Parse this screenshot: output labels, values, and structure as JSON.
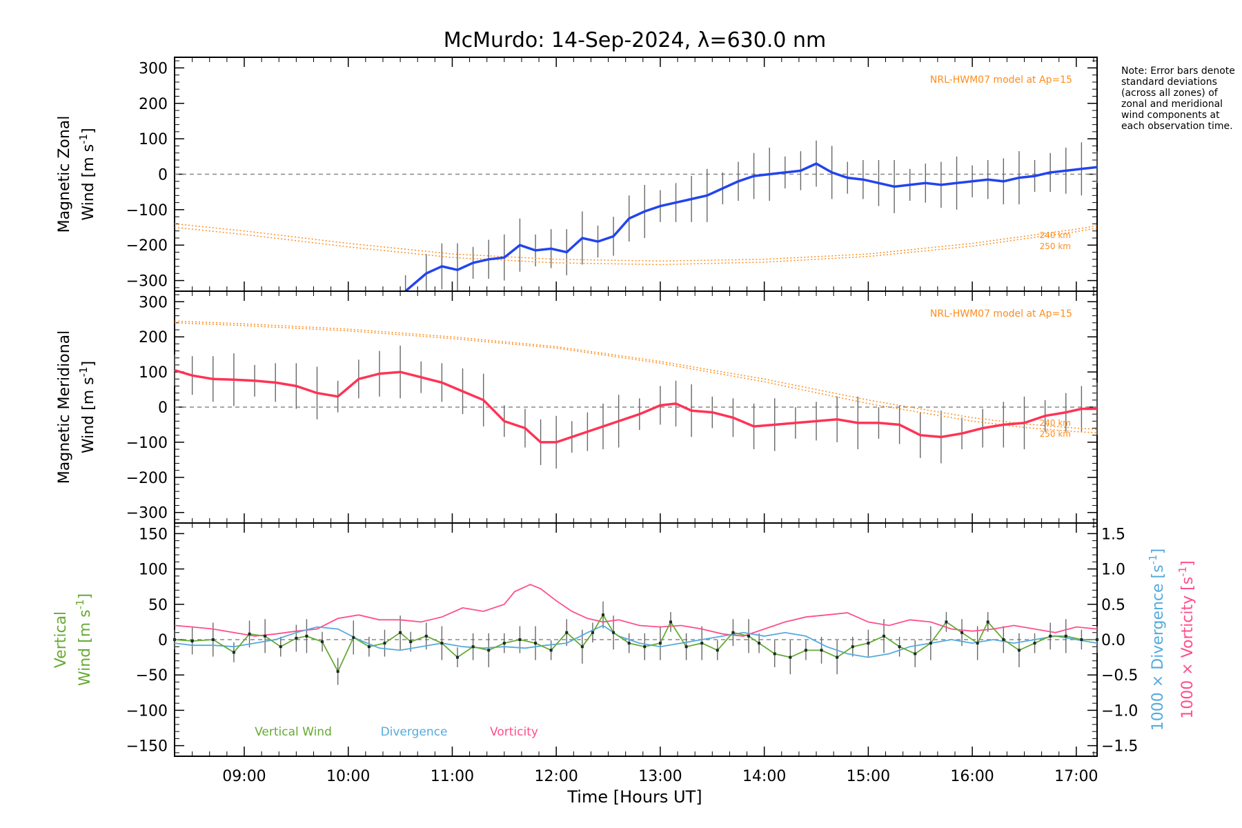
{
  "chart_data": {
    "type": "line",
    "title": "McMurdo: 14-Sep-2024, λ=630.0 nm",
    "xlabel": "Time [Hours UT]",
    "x_ticks": [
      "09:00",
      "10:00",
      "11:00",
      "12:00",
      "13:00",
      "14:00",
      "15:00",
      "16:00",
      "17:00"
    ],
    "xlim": [
      8.33,
      17.2
    ],
    "note": "Note: Error bars denote standard deviations (across all zones) of zonal and meridional wind components at each observation time.",
    "colors": {
      "zonal": "#2244ee",
      "meridional": "#ff3355",
      "model": "#ff8c1a",
      "vertical": "#66aa33",
      "divergence": "#55aadd",
      "vorticity": "#ff4d8c",
      "errbar": "#666666"
    },
    "panels": [
      {
        "name": "zonal",
        "ylabel_line1": "Magnetic Zonal",
        "ylabel_line2": "Wind [m s",
        "ylabel_sup": "-1",
        "ylabel_close": "]",
        "ylim": [
          -330,
          330
        ],
        "y_ticks": [
          "300",
          "200",
          "100",
          "0",
          "−100",
          "−200",
          "−300"
        ],
        "model_label": "NRL-HWM07 model at Ap=15",
        "model_altitudes": [
          "240 km",
          "250 km"
        ],
        "series": [
          {
            "name": "zonal-wind",
            "x": [
              10.55,
              10.75,
              10.9,
              11.05,
              11.2,
              11.35,
              11.5,
              11.65,
              11.8,
              11.95,
              12.1,
              12.25,
              12.4,
              12.55,
              12.7,
              12.85,
              13.0,
              13.15,
              13.3,
              13.45,
              13.6,
              13.75,
              13.9,
              14.05,
              14.2,
              14.35,
              14.5,
              14.65,
              14.8,
              14.95,
              15.1,
              15.25,
              15.4,
              15.55,
              15.7,
              15.85,
              16.0,
              16.15,
              16.3,
              16.45,
              16.6,
              16.75,
              16.9,
              17.05,
              17.2
            ],
            "y": [
              -330,
              -280,
              -260,
              -270,
              -250,
              -240,
              -235,
              -200,
              -215,
              -210,
              -220,
              -180,
              -190,
              -175,
              -125,
              -105,
              -90,
              -80,
              -70,
              -60,
              -40,
              -20,
              -5,
              0,
              5,
              10,
              30,
              5,
              -10,
              -15,
              -25,
              -35,
              -30,
              -25,
              -30,
              -25,
              -20,
              -15,
              -20,
              -10,
              -5,
              5,
              10,
              15,
              20
            ]
          },
          {
            "name": "model-240km",
            "x": [
              8.33,
              9.0,
              10.0,
              11.0,
              12.0,
              13.0,
              14.0,
              15.0,
              16.0,
              16.5,
              17.0,
              17.2
            ],
            "y": [
              -140,
              -160,
              -195,
              -225,
              -240,
              -245,
              -240,
              -225,
              -195,
              -175,
              -155,
              -145
            ]
          },
          {
            "name": "model-250km",
            "x": [
              8.33,
              9.0,
              10.0,
              11.0,
              12.0,
              13.0,
              14.0,
              15.0,
              16.0,
              16.5,
              17.0,
              17.2
            ],
            "y": [
              -150,
              -170,
              -205,
              -235,
              -250,
              -255,
              -248,
              -232,
              -203,
              -182,
              -162,
              -152
            ]
          }
        ]
      },
      {
        "name": "meridional",
        "ylabel_line1": "Magnetic Meridional",
        "ylabel_line2": "Wind [m s",
        "ylabel_sup": "-1",
        "ylabel_close": "]",
        "ylim": [
          -330,
          330
        ],
        "y_ticks": [
          "300",
          "200",
          "100",
          "0",
          "−100",
          "−200",
          "−300"
        ],
        "model_label": "NRL-HWM07 model at Ap=15",
        "model_altitudes": [
          "240 km",
          "250 km"
        ],
        "series": [
          {
            "name": "meridional-wind",
            "x": [
              8.33,
              8.5,
              8.7,
              8.9,
              9.1,
              9.3,
              9.5,
              9.7,
              9.9,
              10.1,
              10.3,
              10.5,
              10.7,
              10.9,
              11.1,
              11.3,
              11.5,
              11.7,
              11.85,
              12.0,
              12.15,
              12.3,
              12.45,
              12.6,
              12.8,
              13.0,
              13.15,
              13.3,
              13.5,
              13.7,
              13.9,
              14.1,
              14.3,
              14.5,
              14.7,
              14.9,
              15.1,
              15.3,
              15.5,
              15.7,
              15.9,
              16.1,
              16.3,
              16.5,
              16.7,
              16.9,
              17.05,
              17.2
            ],
            "y": [
              105,
              90,
              80,
              78,
              75,
              70,
              60,
              40,
              30,
              80,
              95,
              100,
              85,
              70,
              45,
              20,
              -40,
              -60,
              -100,
              -100,
              -85,
              -70,
              -55,
              -40,
              -20,
              5,
              10,
              -10,
              -15,
              -30,
              -55,
              -50,
              -45,
              -40,
              -35,
              -45,
              -45,
              -50,
              -80,
              -85,
              -75,
              -60,
              -50,
              -45,
              -25,
              -15,
              -5,
              -5
            ]
          },
          {
            "name": "model-240km",
            "x": [
              8.33,
              9.0,
              10.0,
              11.0,
              12.0,
              13.0,
              14.0,
              15.0,
              16.0,
              16.5,
              17.0,
              17.2
            ],
            "y": [
              245,
              237,
              222,
              200,
              172,
              130,
              80,
              20,
              -30,
              -48,
              -60,
              -63
            ]
          },
          {
            "name": "model-250km",
            "x": [
              8.33,
              9.0,
              10.0,
              11.0,
              12.0,
              13.0,
              14.0,
              15.0,
              16.0,
              16.5,
              17.0,
              17.2
            ],
            "y": [
              240,
              232,
              217,
              195,
              168,
              125,
              72,
              10,
              -40,
              -58,
              -70,
              -73
            ]
          }
        ]
      },
      {
        "name": "vertical",
        "ylabel_line1": "Vertical",
        "ylabel_line2": "Wind [m s",
        "ylabel_sup": "-1",
        "ylabel_close": "]",
        "ylim": [
          -165,
          165
        ],
        "y_ticks": [
          "150",
          "100",
          "50",
          "0",
          "−50",
          "−100",
          "−150"
        ],
        "right_ylim": [
          -1.65,
          1.65
        ],
        "right_y_ticks": [
          "1.5",
          "1.0",
          "0.5",
          "0.0",
          "−0.5",
          "−1.0",
          "−1.5"
        ],
        "right_label_divergence": "1000 × Divergence [s",
        "right_label_vorticity": "1000 × Vorticity [s",
        "right_label_sup": "-1",
        "right_label_close": "]",
        "legend": [
          "Vertical Wind",
          "Divergence",
          "Vorticity"
        ],
        "series": [
          {
            "name": "Vertical Wind",
            "x": [
              8.33,
              8.5,
              8.7,
              8.9,
              9.05,
              9.2,
              9.35,
              9.5,
              9.6,
              9.75,
              9.9,
              10.05,
              10.2,
              10.35,
              10.5,
              10.6,
              10.75,
              10.9,
              11.05,
              11.2,
              11.35,
              11.5,
              11.65,
              11.8,
              11.95,
              12.1,
              12.25,
              12.35,
              12.45,
              12.55,
              12.7,
              12.85,
              13.0,
              13.1,
              13.25,
              13.4,
              13.55,
              13.7,
              13.85,
              13.95,
              14.1,
              14.25,
              14.4,
              14.55,
              14.7,
              14.85,
              15.0,
              15.15,
              15.3,
              15.45,
              15.6,
              15.75,
              15.9,
              16.05,
              16.15,
              16.3,
              16.45,
              16.6,
              16.75,
              16.9,
              17.05,
              17.2
            ],
            "y": [
              0,
              -2,
              0,
              -18,
              8,
              5,
              -10,
              2,
              5,
              -3,
              -45,
              3,
              -10,
              -5,
              10,
              -3,
              5,
              -5,
              -25,
              -10,
              -15,
              -5,
              0,
              -5,
              -15,
              10,
              -10,
              10,
              35,
              10,
              -5,
              -10,
              -5,
              25,
              -10,
              -5,
              -15,
              10,
              5,
              -5,
              -20,
              -25,
              -15,
              -15,
              -25,
              -10,
              -5,
              5,
              -10,
              -20,
              -5,
              25,
              10,
              -5,
              25,
              0,
              -15,
              -5,
              5,
              5,
              0,
              0
            ]
          },
          {
            "name": "Divergence",
            "x": [
              8.33,
              8.5,
              8.7,
              8.9,
              9.1,
              9.3,
              9.5,
              9.7,
              9.9,
              10.1,
              10.3,
              10.5,
              10.7,
              10.9,
              11.1,
              11.3,
              11.5,
              11.7,
              11.9,
              12.1,
              12.3,
              12.45,
              12.6,
              12.8,
              13.0,
              13.2,
              13.4,
              13.6,
              13.8,
              14.0,
              14.2,
              14.4,
              14.6,
              14.8,
              15.0,
              15.2,
              15.4,
              15.6,
              15.8,
              16.0,
              16.2,
              16.4,
              16.6,
              16.8,
              17.0,
              17.2
            ],
            "y": [
              -0.05,
              -0.08,
              -0.08,
              -0.1,
              -0.05,
              0.0,
              0.1,
              0.18,
              0.15,
              0.0,
              -0.12,
              -0.15,
              -0.1,
              -0.05,
              -0.1,
              -0.12,
              -0.1,
              -0.12,
              -0.08,
              -0.05,
              0.1,
              0.2,
              0.05,
              -0.05,
              -0.1,
              -0.05,
              0.0,
              0.05,
              0.1,
              0.05,
              0.1,
              0.05,
              -0.1,
              -0.2,
              -0.25,
              -0.2,
              -0.1,
              -0.05,
              0.0,
              -0.05,
              0.0,
              -0.05,
              0.0,
              0.05,
              0.0,
              -0.05
            ]
          },
          {
            "name": "Vorticity",
            "x": [
              8.33,
              8.5,
              8.7,
              8.9,
              9.1,
              9.3,
              9.5,
              9.7,
              9.9,
              10.1,
              10.3,
              10.5,
              10.7,
              10.9,
              11.1,
              11.3,
              11.5,
              11.6,
              11.75,
              11.85,
              12.0,
              12.15,
              12.3,
              12.45,
              12.6,
              12.8,
              13.0,
              13.2,
              13.4,
              13.6,
              13.8,
              14.0,
              14.2,
              14.4,
              14.6,
              14.8,
              15.0,
              15.2,
              15.4,
              15.6,
              15.8,
              16.0,
              16.2,
              16.4,
              16.6,
              16.8,
              17.0,
              17.2
            ],
            "y": [
              0.2,
              0.18,
              0.15,
              0.1,
              0.05,
              0.08,
              0.12,
              0.15,
              0.3,
              0.35,
              0.28,
              0.28,
              0.25,
              0.32,
              0.45,
              0.4,
              0.5,
              0.68,
              0.78,
              0.72,
              0.55,
              0.4,
              0.3,
              0.25,
              0.28,
              0.2,
              0.18,
              0.2,
              0.15,
              0.08,
              0.05,
              0.15,
              0.25,
              0.32,
              0.35,
              0.38,
              0.25,
              0.2,
              0.28,
              0.25,
              0.15,
              0.12,
              0.15,
              0.2,
              0.15,
              0.1,
              0.18,
              0.15
            ]
          }
        ]
      }
    ]
  }
}
